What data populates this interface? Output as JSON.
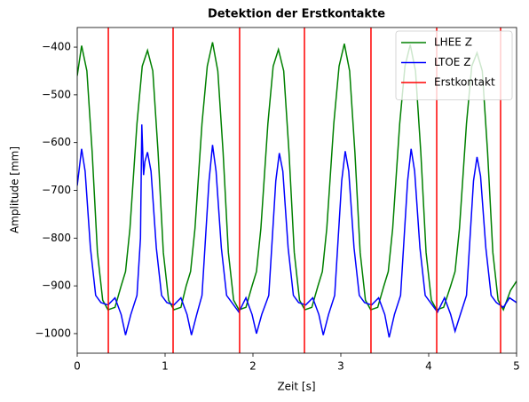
{
  "chart_data": {
    "type": "line",
    "title": "Detektion der Erstkontakte",
    "xlabel": "Zeit [s]",
    "ylabel": "Amplitude [mm]",
    "xlim": [
      0,
      5
    ],
    "xticks": [
      0,
      1,
      2,
      3,
      4,
      5
    ],
    "ylim": [
      -1041,
      -359
    ],
    "yticks": [
      {
        "value": -1000,
        "label": "−1000"
      },
      {
        "value": -900,
        "label": "−900"
      },
      {
        "value": -800,
        "label": "−800"
      },
      {
        "value": -700,
        "label": "−700"
      },
      {
        "value": -600,
        "label": "−600"
      },
      {
        "value": -500,
        "label": "−500"
      },
      {
        "value": -400,
        "label": "−400"
      }
    ],
    "legend": "upper right",
    "series": [
      {
        "name": "LHEE Z",
        "color": "green",
        "x": [
          0,
          0.05,
          0.11,
          0.17,
          0.23,
          0.29,
          0.35,
          0.43,
          0.5,
          0.55,
          0.6,
          0.68,
          0.74,
          0.8,
          0.86,
          0.92,
          0.98,
          1.04,
          1.1,
          1.18,
          1.24,
          1.29,
          1.34,
          1.42,
          1.48,
          1.54,
          1.6,
          1.66,
          1.72,
          1.78,
          1.84,
          1.92,
          1.99,
          2.04,
          2.09,
          2.17,
          2.23,
          2.29,
          2.35,
          2.41,
          2.47,
          2.53,
          2.59,
          2.67,
          2.74,
          2.79,
          2.84,
          2.92,
          2.98,
          3.04,
          3.1,
          3.16,
          3.22,
          3.28,
          3.34,
          3.42,
          3.49,
          3.54,
          3.59,
          3.67,
          3.73,
          3.79,
          3.85,
          3.91,
          3.97,
          4.03,
          4.09,
          4.17,
          4.25,
          4.3,
          4.35,
          4.43,
          4.49,
          4.55,
          4.61,
          4.67,
          4.73,
          4.79,
          4.85,
          4.93,
          5
        ],
        "values": [
          -460,
          -397,
          -450,
          -620,
          -830,
          -930,
          -950,
          -945,
          -900,
          -870,
          -780,
          -560,
          -440,
          -407,
          -450,
          -620,
          -830,
          -930,
          -950,
          -945,
          -900,
          -870,
          -780,
          -560,
          -440,
          -390,
          -450,
          -620,
          -830,
          -930,
          -950,
          -945,
          -900,
          -870,
          -780,
          -560,
          -440,
          -405,
          -450,
          -620,
          -830,
          -930,
          -950,
          -945,
          -900,
          -870,
          -780,
          -560,
          -440,
          -393,
          -450,
          -620,
          -830,
          -930,
          -950,
          -945,
          -900,
          -870,
          -780,
          -560,
          -440,
          -395,
          -450,
          -620,
          -830,
          -930,
          -950,
          -945,
          -900,
          -870,
          -780,
          -560,
          -440,
          -412,
          -450,
          -620,
          -830,
          -930,
          -950,
          -910,
          -890
        ]
      },
      {
        "name": "LTOE Z",
        "color": "blue",
        "x": [
          0,
          0.05,
          0.09,
          0.15,
          0.21,
          0.27,
          0.35,
          0.43,
          0.5,
          0.55,
          0.61,
          0.68,
          0.72,
          0.735,
          0.755,
          0.77,
          0.8,
          0.84,
          0.9,
          0.96,
          1.02,
          1.1,
          1.18,
          1.25,
          1.3,
          1.36,
          1.42,
          1.46,
          1.5,
          1.54,
          1.58,
          1.64,
          1.7,
          1.76,
          1.84,
          1.92,
          1.99,
          2.04,
          2.1,
          2.18,
          2.22,
          2.26,
          2.3,
          2.34,
          2.4,
          2.46,
          2.52,
          2.6,
          2.68,
          2.75,
          2.8,
          2.86,
          2.93,
          2.97,
          3.01,
          3.05,
          3.09,
          3.15,
          3.21,
          3.27,
          3.35,
          3.43,
          3.5,
          3.55,
          3.61,
          3.68,
          3.72,
          3.76,
          3.8,
          3.84,
          3.9,
          3.96,
          4.02,
          4.1,
          4.18,
          4.25,
          4.3,
          4.36,
          4.43,
          4.47,
          4.51,
          4.55,
          4.59,
          4.65,
          4.71,
          4.77,
          4.85,
          4.92,
          5
        ],
        "values": [
          -690,
          -613,
          -660,
          -820,
          -920,
          -935,
          -940,
          -925,
          -960,
          -1003,
          -960,
          -920,
          -800,
          -562,
          -668,
          -640,
          -620,
          -660,
          -820,
          -920,
          -935,
          -940,
          -925,
          -960,
          -1003,
          -960,
          -920,
          -800,
          -680,
          -605,
          -660,
          -820,
          -920,
          -935,
          -955,
          -925,
          -960,
          -1000,
          -960,
          -920,
          -800,
          -680,
          -622,
          -660,
          -820,
          -920,
          -935,
          -940,
          -925,
          -960,
          -1003,
          -960,
          -920,
          -800,
          -680,
          -618,
          -660,
          -820,
          -920,
          -935,
          -940,
          -925,
          -960,
          -1008,
          -960,
          -920,
          -800,
          -680,
          -613,
          -660,
          -820,
          -920,
          -935,
          -955,
          -925,
          -960,
          -995,
          -960,
          -920,
          -800,
          -680,
          -630,
          -670,
          -820,
          -920,
          -935,
          -945,
          -925,
          -935
        ]
      }
    ],
    "vlines": {
      "name": "Erstkontakt",
      "color": "red",
      "x": [
        0.354,
        1.091,
        1.848,
        2.586,
        3.343,
        4.091,
        4.818
      ]
    }
  }
}
